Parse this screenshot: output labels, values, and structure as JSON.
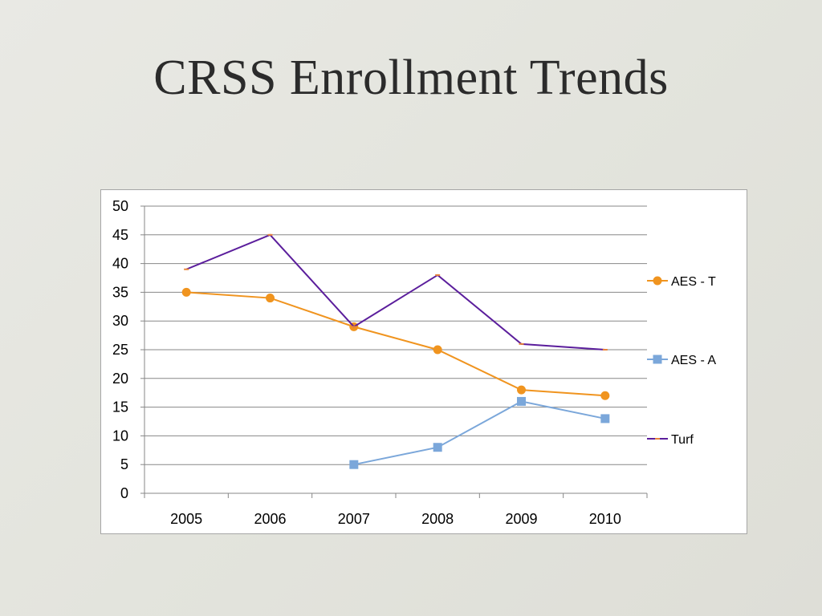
{
  "slide": {
    "title": "CRSS Enrollment Trends"
  },
  "chart_data": {
    "type": "line",
    "title": "",
    "xlabel": "",
    "ylabel": "",
    "categories": [
      "2005",
      "2006",
      "2007",
      "2008",
      "2009",
      "2010"
    ],
    "ylim": [
      0,
      50
    ],
    "yticks": [
      0,
      5,
      10,
      15,
      20,
      25,
      30,
      35,
      40,
      45,
      50
    ],
    "grid": true,
    "legend_position": "right",
    "series": [
      {
        "name": "AES - T",
        "values": [
          35,
          34,
          29,
          25,
          18,
          17
        ],
        "color": "#f0941f",
        "marker": "circle"
      },
      {
        "name": "AES - A",
        "values": [
          null,
          null,
          5,
          8,
          16,
          13
        ],
        "color": "#7ba7da",
        "marker": "square"
      },
      {
        "name": "Turf",
        "values": [
          39,
          45,
          29,
          38,
          26,
          25
        ],
        "color": "#5b1e9c",
        "marker": "dash"
      }
    ]
  }
}
